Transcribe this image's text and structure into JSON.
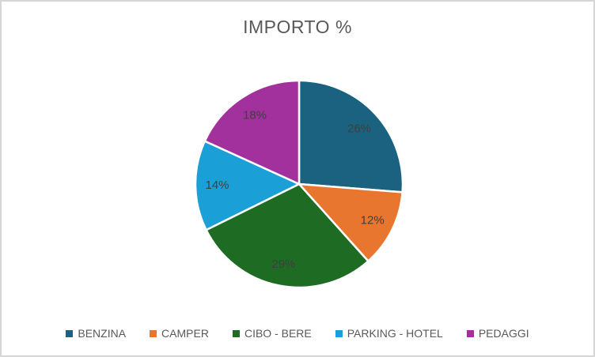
{
  "chart_data": {
    "type": "pie",
    "title": "IMPORTO %",
    "categories": [
      "BENZINA",
      "CAMPER",
      "CIBO - BERE",
      "PARKING - HOTEL",
      "PEDAGGI"
    ],
    "values": [
      26,
      12,
      29,
      14,
      18
    ],
    "data_labels": [
      "26%",
      "12%",
      "29%",
      "14%",
      "18%"
    ],
    "colors": [
      "#1A627F",
      "#E9762F",
      "#1E6C23",
      "#1AA0D6",
      "#A2309D"
    ],
    "legend_position": "bottom",
    "start_angle_deg": 0,
    "direction": "clockwise",
    "label_format": "percent"
  }
}
